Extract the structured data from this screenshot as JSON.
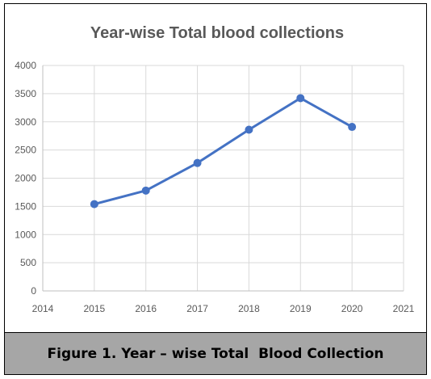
{
  "chart_data": {
    "type": "line",
    "title": "Year-wise Total blood collections",
    "xlabel": "",
    "ylabel": "",
    "x_ticks": [
      2014,
      2015,
      2016,
      2017,
      2018,
      2019,
      2020,
      2021
    ],
    "y_ticks": [
      0,
      500,
      1000,
      1500,
      2000,
      2500,
      3000,
      3500,
      4000
    ],
    "xlim": [
      2014,
      2021
    ],
    "ylim": [
      0,
      4000
    ],
    "grid": true,
    "series": [
      {
        "color": "#4472c4",
        "x": [
          2015,
          2016,
          2017,
          2018,
          2019,
          2020
        ],
        "y": [
          1540,
          1780,
          2270,
          2860,
          3420,
          2910
        ]
      }
    ]
  },
  "caption": "Figure 1. Year – wise Total  Blood Collection",
  "colors": {
    "series": "#4472c4",
    "caption_background": "#a6a6a6",
    "gridline": "#d9d9d9",
    "axis_text": "#595959"
  }
}
